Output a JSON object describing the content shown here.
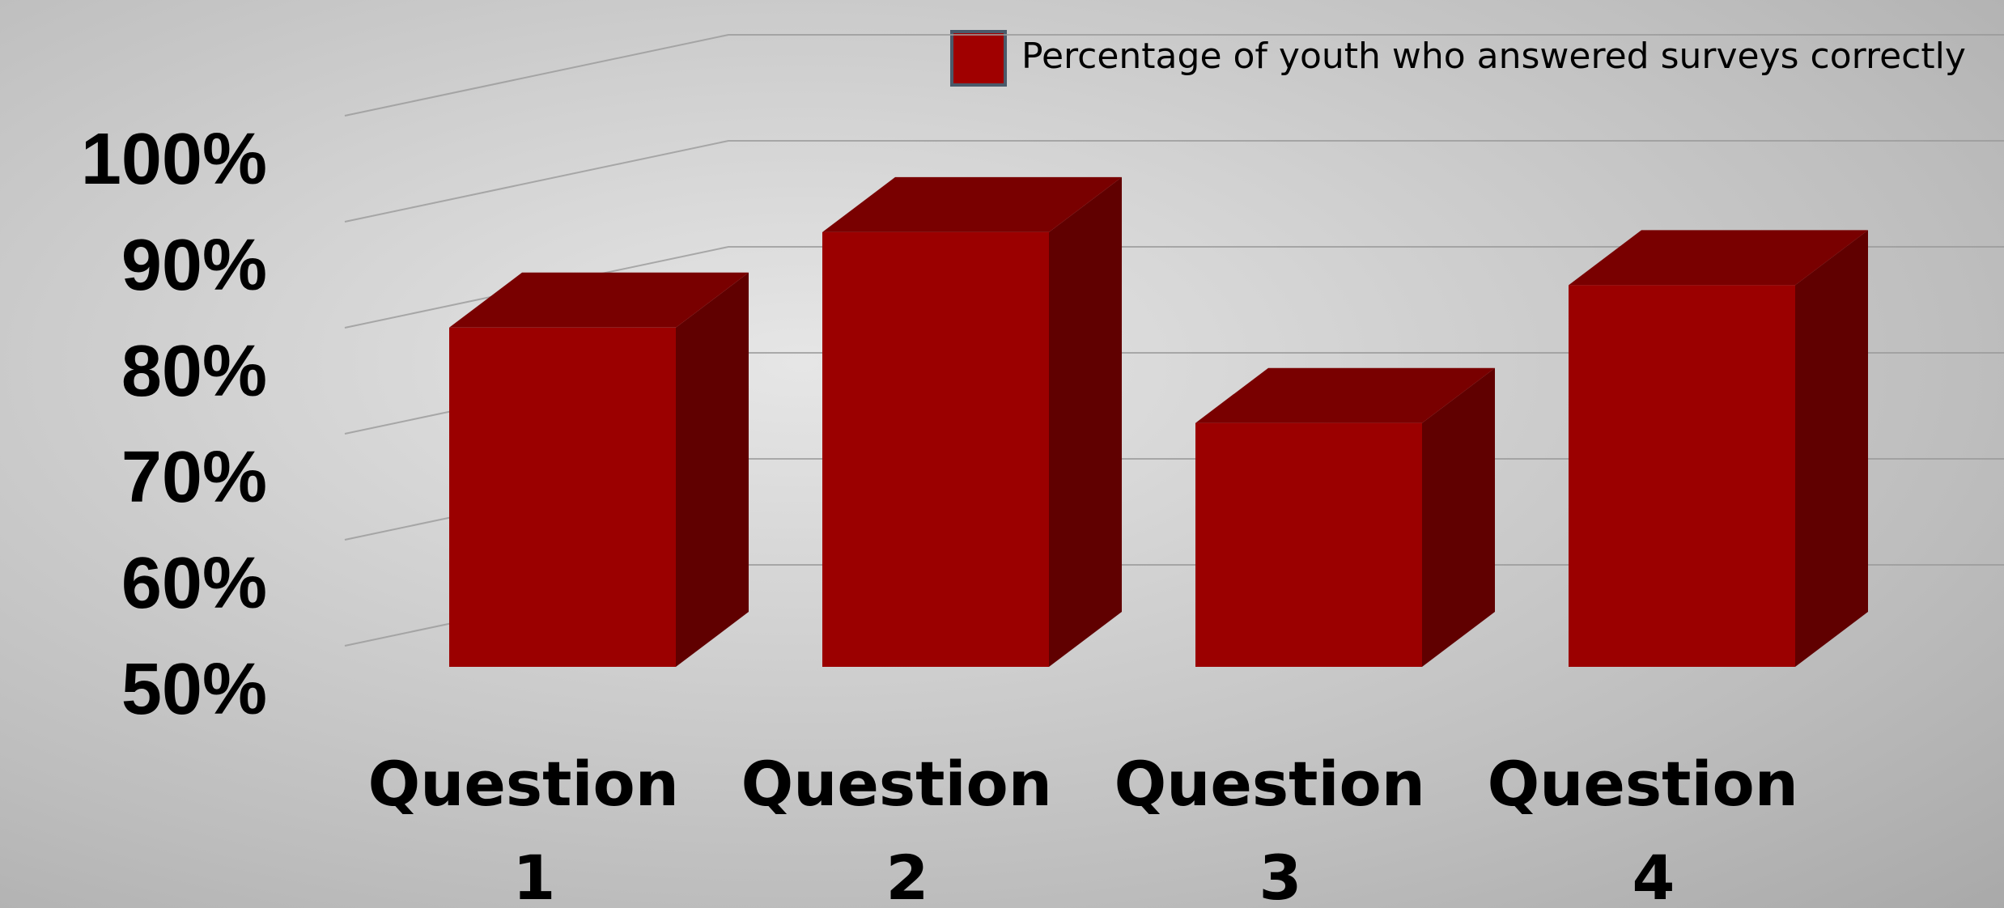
{
  "chart_data": {
    "type": "bar3d",
    "legend": "Percentage of youth who answered surveys correctly",
    "categories": [
      "Question 1",
      "Question 2",
      "Question 3",
      "Question 4"
    ],
    "series": [
      {
        "name": "Percentage of youth who answered surveys correctly",
        "color": "#9b0000",
        "values": [
          82,
          91,
          73,
          86
        ]
      }
    ],
    "ylim": [
      50,
      100
    ],
    "yticks": [
      {
        "value": 50,
        "label": "50%"
      },
      {
        "value": 60,
        "label": "60%"
      },
      {
        "value": 70,
        "label": "70%"
      },
      {
        "value": 80,
        "label": "80%"
      },
      {
        "value": 90,
        "label": "90%"
      },
      {
        "value": 100,
        "label": "100%"
      }
    ],
    "grid": true
  }
}
